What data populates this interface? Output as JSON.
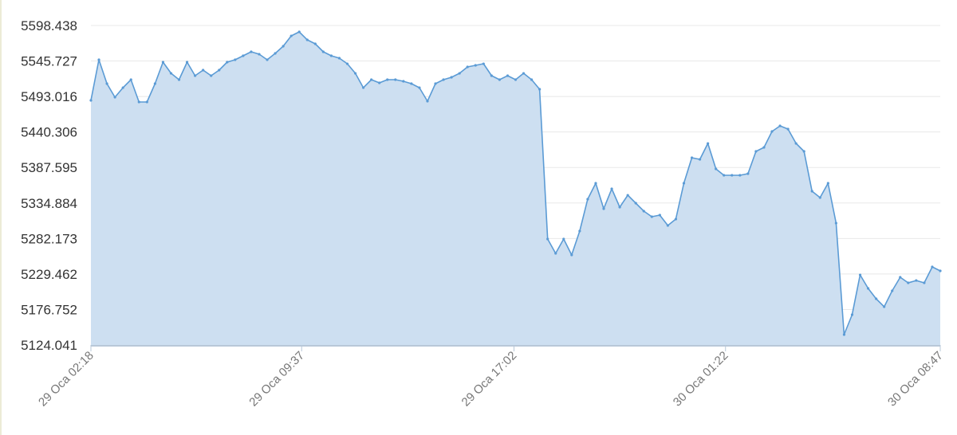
{
  "chart_data": {
    "type": "area",
    "title": "",
    "xlabel": "",
    "ylabel": "",
    "ylim": [
      5124.041,
      5598.438
    ],
    "grid": true,
    "legend": "none",
    "colors": {
      "line": "#5b9bd5",
      "fill": "#cddff1",
      "grid": "#e8e8e8",
      "axis": "#b8c8d8"
    },
    "y_ticks": [
      "5124.041",
      "5176.752",
      "5229.462",
      "5282.173",
      "5334.884",
      "5387.595",
      "5440.306",
      "5493.016",
      "5545.727",
      "5598.438"
    ],
    "x_ticks": [
      {
        "label": "29 Oca 02:18",
        "index": 0
      },
      {
        "label": "29 Oca 09:37",
        "index": 26.3
      },
      {
        "label": "29 Oca 17:02",
        "index": 52.8
      },
      {
        "label": "30 Oca 01:22",
        "index": 79.2
      },
      {
        "label": "30 Oca 08:47",
        "index": 106
      }
    ],
    "values": [
      5487.2,
      5547.6,
      5512.1,
      5492.0,
      5506.1,
      5518.0,
      5484.9,
      5484.9,
      5512.1,
      5544.0,
      5527.4,
      5518.0,
      5544.0,
      5523.9,
      5532.2,
      5523.9,
      5532.2,
      5544.0,
      5547.6,
      5553.5,
      5559.4,
      5555.8,
      5547.6,
      5557.0,
      5567.7,
      5583.0,
      5589.0,
      5577.1,
      5571.2,
      5559.4,
      5553.5,
      5549.9,
      5541.6,
      5527.4,
      5506.1,
      5518.0,
      5513.3,
      5518.0,
      5518.0,
      5515.6,
      5512.1,
      5506.1,
      5486.0,
      5512.1,
      5518.0,
      5521.5,
      5527.4,
      5536.9,
      5539.3,
      5541.6,
      5523.9,
      5518.0,
      5523.9,
      5518.0,
      5527.4,
      5518.0,
      5503.8,
      5281.4,
      5260.1,
      5281.4,
      5257.7,
      5293.2,
      5340.5,
      5364.2,
      5326.3,
      5355.9,
      5328.7,
      5346.4,
      5334.6,
      5322.8,
      5314.5,
      5316.9,
      5301.5,
      5311.0,
      5364.2,
      5402.1,
      5399.7,
      5423.3,
      5385.5,
      5376.0,
      5376.0,
      5376.0,
      5378.4,
      5411.5,
      5417.4,
      5441.1,
      5449.4,
      5444.6,
      5423.3,
      5411.5,
      5352.4,
      5342.9,
      5364.2,
      5305.0,
      5139.4,
      5169.0,
      5228.1,
      5208.0,
      5192.7,
      5180.8,
      5204.5,
      5224.6,
      5216.3,
      5219.8,
      5216.3,
      5240.0,
      5234.1
    ]
  }
}
